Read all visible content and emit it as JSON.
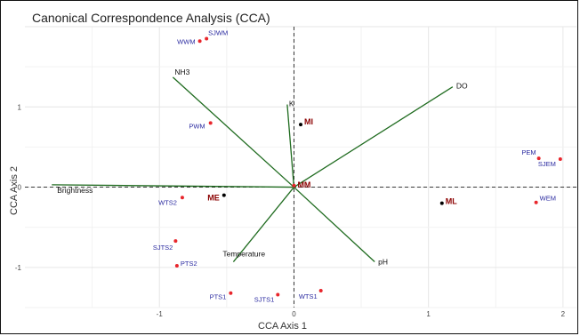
{
  "chart_data": {
    "type": "scatter",
    "title": "Canonical Correspondence Analysis (CCA)",
    "xlabel": "CCA Axis 1",
    "ylabel": "CCA Axis 2",
    "xlim": [
      -2.0,
      2.1
    ],
    "ylim": [
      -1.5,
      2.0
    ],
    "xticks": [
      -1,
      0,
      1,
      2
    ],
    "yticks": [
      -1,
      0,
      1
    ],
    "grid": true,
    "reference_lines": {
      "x": 0,
      "y": 0,
      "style": "dashed"
    },
    "sites": [
      {
        "label": "SJWM",
        "x": -0.65,
        "y": 1.85,
        "color": "#e8262c",
        "emphasis": false
      },
      {
        "label": "WWM",
        "x": -0.7,
        "y": 1.82,
        "color": "#e8262c",
        "emphasis": false
      },
      {
        "label": "PWM",
        "x": -0.62,
        "y": 0.8,
        "color": "#e8262c",
        "emphasis": false
      },
      {
        "label": "MI",
        "x": 0.05,
        "y": 0.78,
        "color": "#000000",
        "emphasis": true
      },
      {
        "label": "MM",
        "x": 0.0,
        "y": 0.02,
        "color": "#e8262c",
        "emphasis": true
      },
      {
        "label": "ME",
        "x": -0.52,
        "y": -0.1,
        "color": "#000000",
        "emphasis": true
      },
      {
        "label": "WTS2",
        "x": -0.83,
        "y": -0.13,
        "color": "#e8262c",
        "emphasis": false
      },
      {
        "label": "ML",
        "x": 1.1,
        "y": -0.2,
        "color": "#000000",
        "emphasis": true
      },
      {
        "label": "PEM",
        "x": 1.82,
        "y": 0.36,
        "color": "#e8262c",
        "emphasis": false
      },
      {
        "label": "SJEM",
        "x": 1.98,
        "y": 0.35,
        "color": "#e8262c",
        "emphasis": false
      },
      {
        "label": "WEM",
        "x": 1.8,
        "y": -0.19,
        "color": "#e8262c",
        "emphasis": false
      },
      {
        "label": "SJTS2",
        "x": -0.88,
        "y": -0.67,
        "color": "#e8262c",
        "emphasis": false
      },
      {
        "label": "PTS2",
        "x": -0.87,
        "y": -0.98,
        "color": "#e8262c",
        "emphasis": false
      },
      {
        "label": "PTS1",
        "x": -0.47,
        "y": -1.32,
        "color": "#e8262c",
        "emphasis": false
      },
      {
        "label": "SJTS1",
        "x": -0.12,
        "y": -1.34,
        "color": "#e8262c",
        "emphasis": false
      },
      {
        "label": "WTS1",
        "x": 0.2,
        "y": -1.29,
        "color": "#e8262c",
        "emphasis": false
      }
    ],
    "env_vectors": [
      {
        "label": "NH3",
        "x": -0.9,
        "y": 1.37
      },
      {
        "label": "K",
        "x": -0.05,
        "y": 1.03
      },
      {
        "label": "DO",
        "x": 1.18,
        "y": 1.25
      },
      {
        "label": "Brightness",
        "x": -1.8,
        "y": 0.03
      },
      {
        "label": "Temperature",
        "x": -0.45,
        "y": -0.93
      },
      {
        "label": "pH",
        "x": 0.6,
        "y": -0.93
      }
    ],
    "vector_color": "#1f6b1f"
  }
}
